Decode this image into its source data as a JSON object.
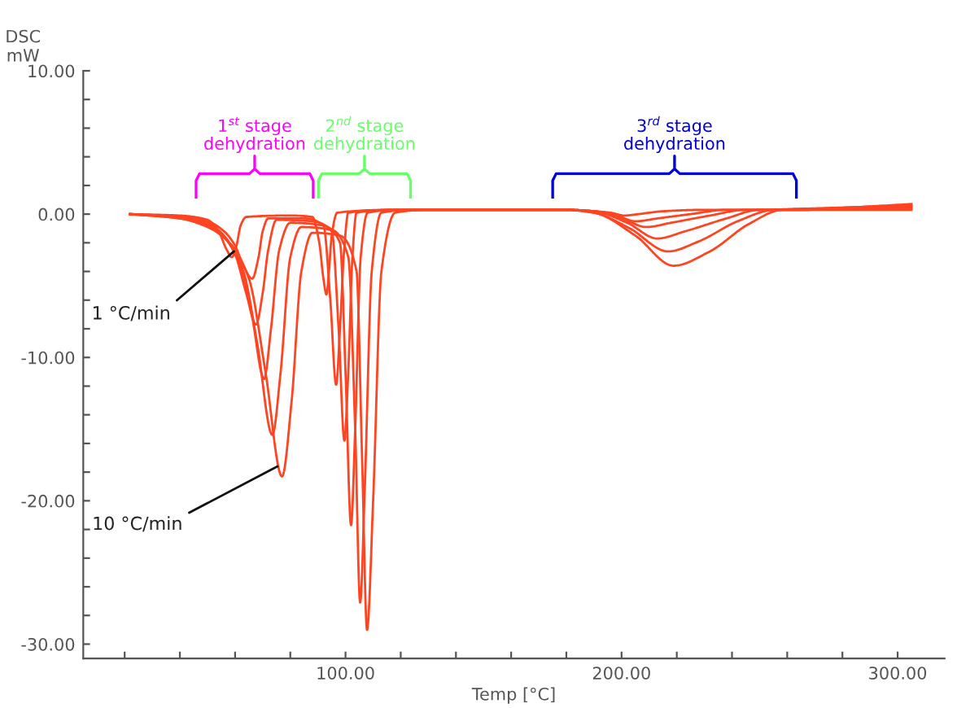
{
  "chart_data": {
    "type": "line",
    "xlabel": "Temp [°C]",
    "ylabel": "DSC\nmW",
    "xlim": [
      5,
      317
    ],
    "ylim": [
      -31,
      10
    ],
    "xticks": [
      {
        "value": 20,
        "label": null
      },
      {
        "value": 40,
        "label": null
      },
      {
        "value": 60,
        "label": null
      },
      {
        "value": 80,
        "label": null
      },
      {
        "value": 100,
        "label": "100.00"
      },
      {
        "value": 120,
        "label": null
      },
      {
        "value": 140,
        "label": null
      },
      {
        "value": 160,
        "label": null
      },
      {
        "value": 180,
        "label": null
      },
      {
        "value": 200,
        "label": "200.00"
      },
      {
        "value": 220,
        "label": null
      },
      {
        "value": 240,
        "label": null
      },
      {
        "value": 260,
        "label": null
      },
      {
        "value": 280,
        "label": null
      },
      {
        "value": 300,
        "label": "300.00"
      }
    ],
    "yticks": [
      {
        "value": 10,
        "label": "10.00"
      },
      {
        "value": 8,
        "label": null
      },
      {
        "value": 6,
        "label": null
      },
      {
        "value": 4,
        "label": null
      },
      {
        "value": 2,
        "label": null
      },
      {
        "value": 0,
        "label": "0.00"
      },
      {
        "value": -2,
        "label": null
      },
      {
        "value": -4,
        "label": null
      },
      {
        "value": -6,
        "label": null
      },
      {
        "value": -8,
        "label": null
      },
      {
        "value": -10,
        "label": "-10.00"
      },
      {
        "value": -12,
        "label": null
      },
      {
        "value": -14,
        "label": null
      },
      {
        "value": -16,
        "label": null
      },
      {
        "value": -18,
        "label": null
      },
      {
        "value": -20,
        "label": "-20.00"
      },
      {
        "value": -22,
        "label": null
      },
      {
        "value": -24,
        "label": null
      },
      {
        "value": -26,
        "label": null
      },
      {
        "value": -28,
        "label": null
      },
      {
        "value": -30,
        "label": "-30.00"
      }
    ],
    "grid": false,
    "legend": false,
    "marker": "none",
    "line_style": "solid",
    "series": [
      {
        "color": "#ff4422",
        "x": [
          22,
          40,
          50,
          54,
          57,
          58.8,
          60.5,
          62,
          64,
          80,
          88,
          90.5,
          92,
          93.1,
          94,
          95,
          97,
          120,
          180,
          190,
          196,
          201,
          206,
          215,
          230,
          260,
          305
        ],
        "values": [
          0,
          -0.1,
          -0.4,
          -1.2,
          -2.5,
          -3.0,
          -2.2,
          -0.8,
          -0.2,
          -0.1,
          -0.2,
          -2.0,
          -4.5,
          -5.6,
          -4.0,
          -1.5,
          0.1,
          0.3,
          0.3,
          0.2,
          0.1,
          -0.1,
          0.0,
          0.2,
          0.3,
          0.3,
          0.3
        ]
      },
      {
        "color": "#ff4422",
        "x": [
          22,
          40,
          50,
          56,
          60,
          63,
          66.2,
          68.5,
          70,
          72,
          85,
          92,
          94.5,
          96.6,
          98,
          99.5,
          101,
          120,
          180,
          190,
          197,
          205,
          213,
          225,
          238,
          260,
          305
        ],
        "values": [
          0,
          -0.2,
          -0.5,
          -1.2,
          -2.2,
          -3.6,
          -4.5,
          -3.0,
          -1.2,
          -0.3,
          -0.3,
          -0.8,
          -6,
          -11.9,
          -8,
          -2.5,
          0.1,
          0.3,
          0.3,
          0.2,
          0.0,
          -0.5,
          -0.3,
          0.0,
          0.3,
          0.3,
          0.4
        ]
      },
      {
        "color": "#ff4422",
        "x": [
          22,
          40,
          50,
          56,
          60,
          64,
          67.6,
          70,
          72,
          75,
          88,
          95,
          97.5,
          99.6,
          101,
          102.5,
          104,
          120,
          180,
          190,
          200,
          209,
          218,
          232,
          245,
          260,
          305
        ],
        "values": [
          0,
          -0.2,
          -0.6,
          -1.5,
          -2.8,
          -5.5,
          -7.7,
          -5.5,
          -2.5,
          -0.4,
          -0.5,
          -1.2,
          -8,
          -15.8,
          -11,
          -3,
          0.1,
          0.3,
          0.3,
          0.2,
          -0.3,
          -0.9,
          -0.6,
          -0.1,
          0.3,
          0.3,
          0.5
        ]
      },
      {
        "color": "#ff4422",
        "x": [
          22,
          40,
          50,
          56,
          61,
          66,
          70.5,
          73,
          76,
          80,
          92,
          98,
          100,
          102,
          103.5,
          105.5,
          108,
          120,
          180,
          190,
          202,
          212.9,
          223,
          238,
          250,
          265,
          305
        ],
        "values": [
          0,
          -0.2,
          -0.7,
          -1.6,
          -3.2,
          -7,
          -11.5,
          -8,
          -2.5,
          -0.6,
          -0.8,
          -2,
          -11,
          -21.7,
          -15,
          -3,
          0.1,
          0.3,
          0.3,
          0.2,
          -0.6,
          -1.7,
          -1.2,
          -0.3,
          0.3,
          0.3,
          0.6
        ]
      },
      {
        "color": "#ff4422",
        "x": [
          22,
          40,
          50,
          57,
          63,
          68,
          73.5,
          76.5,
          80,
          84,
          95,
          101,
          103.5,
          105.3,
          107,
          109.5,
          113,
          125,
          180,
          190,
          203,
          216.8,
          228,
          242,
          255,
          270,
          305
        ],
        "values": [
          0,
          -0.3,
          -0.8,
          -1.8,
          -4,
          -9,
          -15.4,
          -11,
          -3,
          -0.9,
          -1.1,
          -3,
          -15,
          -27.1,
          -19,
          -4,
          0.1,
          0.3,
          0.3,
          0.1,
          -1.0,
          -2.6,
          -1.9,
          -0.5,
          0.3,
          0.4,
          0.6
        ]
      },
      {
        "color": "#ff4422",
        "x": [
          22,
          40,
          50,
          58,
          65,
          71,
          77,
          80.5,
          84,
          88,
          98,
          104,
          106,
          107.8,
          110,
          113,
          118,
          130,
          180,
          190,
          205,
          218.8,
          232,
          246,
          258,
          275,
          305
        ],
        "values": [
          0,
          -0.3,
          -0.9,
          -2,
          -4.5,
          -11,
          -18.3,
          -13,
          -4,
          -1.3,
          -1.5,
          -4,
          -17,
          -29.0,
          -20,
          -4,
          0.1,
          0.3,
          0.3,
          0.1,
          -1.5,
          -3.6,
          -2.6,
          -0.7,
          0.3,
          0.4,
          0.7
        ]
      }
    ],
    "annotations": [
      "1$^{st}$ stage\ndehydration",
      "2$^{nd}$ stage\ndehydration",
      "3$^{rd}$ stage\ndehydration",
      {
        "text": "1 °C/min",
        "x": 59.6,
        "y": -2.6
      },
      {
        "text": "10 °C/min",
        "x": 75.4,
        "y": -17.6
      }
    ]
  }
}
